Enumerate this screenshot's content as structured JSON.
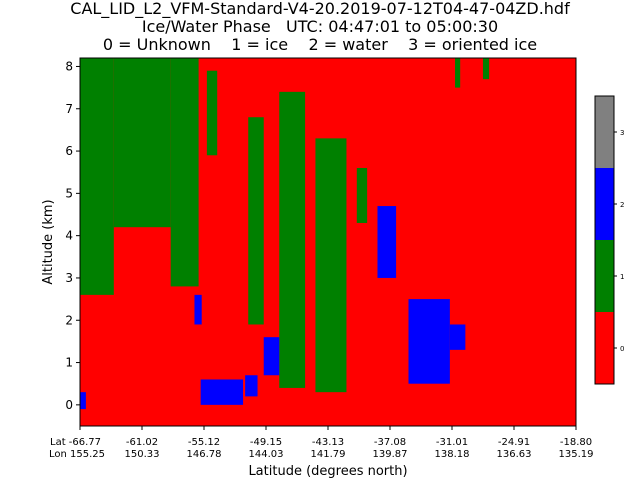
{
  "title": {
    "line1": "CAL_LID_L2_VFM-Standard-V4-20.2019-07-12T04-47-04ZD.hdf",
    "line2": "Ice/Water Phase   UTC: 04:47:01 to 05:00:30",
    "line3": "0 = Unknown    1 = ice    2 = water    3 = oriented ice"
  },
  "colors": {
    "unknown": "#ff0000",
    "ice": "#008000",
    "water": "#0000ff",
    "oriented_ice": "#808080"
  },
  "chart_data": {
    "type": "heatmap",
    "title": "Ice/Water Phase",
    "xlabel": "Latitude (degrees north)",
    "ylabel": "Altitude (km)",
    "ylim": [
      -0.5,
      8.2
    ],
    "y_ticks": [
      "0",
      "1",
      "2",
      "3",
      "4",
      "5",
      "6",
      "7",
      "8"
    ],
    "x_ticks": [
      {
        "lat": "-66.77",
        "lon": "155.25"
      },
      {
        "lat": "-61.02",
        "lon": "150.33"
      },
      {
        "lat": "-55.12",
        "lon": "146.78"
      },
      {
        "lat": "-49.15",
        "lon": "144.03"
      },
      {
        "lat": "-43.13",
        "lon": "141.79"
      },
      {
        "lat": "-37.08",
        "lon": "139.87"
      },
      {
        "lat": "-31.01",
        "lon": "138.18"
      },
      {
        "lat": "-24.91",
        "lon": "136.63"
      },
      {
        "lat": "-18.80",
        "lon": "135.19"
      }
    ],
    "x_tick_prefix_lat": "Lat",
    "x_tick_prefix_lon": "Lon",
    "colorbar": {
      "categories": [
        0,
        1,
        2,
        3
      ],
      "tick_labels": [
        "0",
        "1",
        "2",
        "3"
      ]
    },
    "ice_regions": [
      {
        "lat_start": -66.77,
        "lat_end": -63.5,
        "alt_bottom": 2.6,
        "alt_top": 8.2
      },
      {
        "lat_start": -63.5,
        "lat_end": -58.0,
        "alt_bottom": 4.2,
        "alt_top": 8.2
      },
      {
        "lat_start": -58.0,
        "lat_end": -55.3,
        "alt_bottom": 2.8,
        "alt_top": 8.2
      },
      {
        "lat_start": -54.5,
        "lat_end": -53.5,
        "alt_bottom": 5.9,
        "alt_top": 7.9
      },
      {
        "lat_start": -50.5,
        "lat_end": -49.0,
        "alt_bottom": 1.9,
        "alt_top": 6.8
      },
      {
        "lat_start": -47.5,
        "lat_end": -45.0,
        "alt_bottom": 0.4,
        "alt_top": 7.4
      },
      {
        "lat_start": -44.0,
        "lat_end": -41.0,
        "alt_bottom": 0.3,
        "alt_top": 6.3
      },
      {
        "lat_start": -40.0,
        "lat_end": -39.0,
        "alt_bottom": 4.3,
        "alt_top": 5.6
      },
      {
        "lat_start": -30.5,
        "lat_end": -30.0,
        "alt_bottom": 7.5,
        "alt_top": 8.2
      },
      {
        "lat_start": -27.8,
        "lat_end": -27.2,
        "alt_bottom": 7.7,
        "alt_top": 8.2
      }
    ],
    "water_regions": [
      {
        "lat_start": -66.77,
        "lat_end": -66.2,
        "alt_bottom": -0.1,
        "alt_top": 0.3
      },
      {
        "lat_start": -55.7,
        "lat_end": -55.0,
        "alt_bottom": 1.9,
        "alt_top": 2.6
      },
      {
        "lat_start": -55.1,
        "lat_end": -51.0,
        "alt_bottom": 0.0,
        "alt_top": 0.6
      },
      {
        "lat_start": -50.8,
        "lat_end": -49.6,
        "alt_bottom": 0.2,
        "alt_top": 0.7
      },
      {
        "lat_start": -49.0,
        "lat_end": -47.5,
        "alt_bottom": 0.7,
        "alt_top": 1.6
      },
      {
        "lat_start": -38.0,
        "lat_end": -36.2,
        "alt_bottom": 3.0,
        "alt_top": 4.7
      },
      {
        "lat_start": -35.0,
        "lat_end": -31.0,
        "alt_bottom": 0.5,
        "alt_top": 2.5
      },
      {
        "lat_start": -31.0,
        "lat_end": -29.5,
        "alt_bottom": 1.3,
        "alt_top": 1.9
      }
    ]
  }
}
